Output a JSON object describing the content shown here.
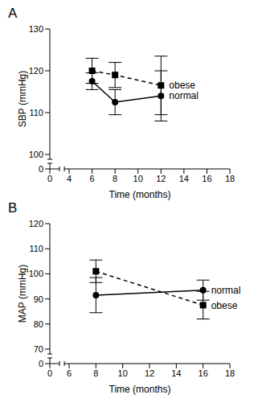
{
  "chart_data": [
    {
      "type": "line",
      "title": "A",
      "xlabel": "Time (months)",
      "ylabel": "SBP (mmHg)",
      "xlim": [
        0,
        18
      ],
      "xticks": [
        0,
        4,
        6,
        8,
        10,
        12,
        14,
        16,
        18
      ],
      "x_axis_break": [
        0,
        4
      ],
      "ylim": [
        0,
        130
      ],
      "yticks": [
        0,
        100,
        110,
        120,
        130
      ],
      "y_axis_break": [
        0,
        100
      ],
      "series": [
        {
          "name": "obese",
          "color": "#000000",
          "marker": "square",
          "line_style": "dashed",
          "x": [
            6,
            8,
            12
          ],
          "values": [
            120,
            119,
            116.5
          ],
          "errors": [
            3,
            3,
            7
          ]
        },
        {
          "name": "normal",
          "color": "#000000",
          "marker": "circle",
          "line_style": "solid",
          "x": [
            6,
            8,
            12
          ],
          "values": [
            117.5,
            112.5,
            114
          ],
          "errors": [
            2,
            3,
            6
          ]
        }
      ]
    },
    {
      "type": "line",
      "title": "B",
      "xlabel": "Time (months)",
      "ylabel": "MAP (mmHg)",
      "xlim": [
        0,
        18
      ],
      "xticks": [
        0,
        6,
        8,
        10,
        12,
        14,
        16,
        18
      ],
      "x_axis_break": [
        0,
        6
      ],
      "ylim": [
        0,
        120
      ],
      "yticks": [
        0,
        70,
        80,
        90,
        100,
        110,
        120
      ],
      "y_axis_break": [
        0,
        70
      ],
      "series": [
        {
          "name": "obese",
          "color": "#000000",
          "marker": "square",
          "line_style": "dashed",
          "x": [
            8,
            16
          ],
          "values": [
            101,
            87.5
          ],
          "errors": [
            4.5,
            5.5
          ]
        },
        {
          "name": "normal",
          "color": "#000000",
          "marker": "circle",
          "line_style": "solid",
          "x": [
            8,
            16
          ],
          "values": [
            91.5,
            93.5
          ],
          "errors": [
            7,
            4
          ]
        }
      ]
    }
  ]
}
